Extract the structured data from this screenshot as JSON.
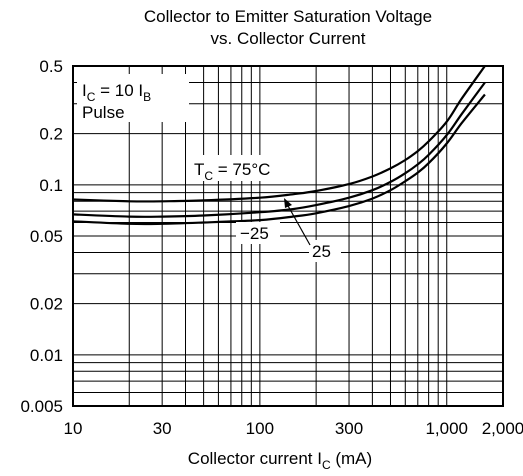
{
  "chart_data": {
    "type": "line",
    "title_line1": "Collector to Emitter Saturation Voltage",
    "title_line2": "vs. Collector Current",
    "xlabel": {
      "prefix": "Collector current  I",
      "sub": "C",
      "suffix": "  (mA)"
    },
    "ylabel": "",
    "x_scale": "log",
    "y_scale": "log",
    "xlim": [
      10,
      2000
    ],
    "ylim": [
      0.005,
      0.5
    ],
    "x_ticks": [
      {
        "value": 10,
        "label": "10"
      },
      {
        "value": 30,
        "label": "30"
      },
      {
        "value": 100,
        "label": "100"
      },
      {
        "value": 300,
        "label": "300"
      },
      {
        "value": 1000,
        "label": "1,000"
      },
      {
        "value": 2000,
        "label": "2,000"
      }
    ],
    "y_ticks": [
      {
        "value": 0.5,
        "label": "0.5"
      },
      {
        "value": 0.2,
        "label": "0.2"
      },
      {
        "value": 0.1,
        "label": "0.1"
      },
      {
        "value": 0.05,
        "label": "0.05"
      },
      {
        "value": 0.02,
        "label": "0.02"
      },
      {
        "value": 0.01,
        "label": "0.01"
      },
      {
        "value": 0.005,
        "label": "0.005"
      }
    ],
    "x_grid": [
      20,
      30,
      40,
      50,
      60,
      70,
      80,
      90,
      100,
      200,
      300,
      400,
      500,
      600,
      700,
      800,
      900,
      1000
    ],
    "y_grid": [
      0.006,
      0.007,
      0.008,
      0.009,
      0.01,
      0.02,
      0.03,
      0.04,
      0.05,
      0.06,
      0.07,
      0.08,
      0.09,
      0.1,
      0.2,
      0.3,
      0.4
    ],
    "grid": true,
    "condition": {
      "line1_prefix": "I",
      "line1_sub": "C",
      "line1_mid": " = 10 I",
      "line1_sub2": "B",
      "line2": "Pulse"
    },
    "series": [
      {
        "name": "T_C = 75°C",
        "label": {
          "prefix": "T",
          "sub": "C",
          "suffix": " = 75°C"
        },
        "x": [
          10,
          20,
          30,
          50,
          100,
          150,
          200,
          300,
          400,
          500,
          600,
          700,
          800,
          1000,
          1200,
          1600
        ],
        "y": [
          0.082,
          0.08,
          0.08,
          0.081,
          0.084,
          0.088,
          0.092,
          0.101,
          0.112,
          0.125,
          0.14,
          0.158,
          0.18,
          0.235,
          0.32,
          0.5
        ]
      },
      {
        "name": "25",
        "label": {
          "prefix": "25",
          "sub": "",
          "suffix": ""
        },
        "x": [
          10,
          20,
          30,
          50,
          100,
          150,
          200,
          300,
          400,
          500,
          600,
          700,
          800,
          1000,
          1200,
          1600
        ],
        "y": [
          0.067,
          0.065,
          0.065,
          0.066,
          0.069,
          0.072,
          0.076,
          0.084,
          0.093,
          0.104,
          0.117,
          0.132,
          0.15,
          0.196,
          0.26,
          0.4
        ]
      },
      {
        "name": "−25",
        "label": {
          "prefix": "−25",
          "sub": "",
          "suffix": ""
        },
        "x": [
          10,
          20,
          30,
          50,
          100,
          150,
          200,
          300,
          400,
          500,
          600,
          700,
          800,
          1000,
          1200,
          1600
        ],
        "y": [
          0.061,
          0.059,
          0.059,
          0.06,
          0.062,
          0.065,
          0.068,
          0.075,
          0.083,
          0.093,
          0.105,
          0.118,
          0.134,
          0.175,
          0.23,
          0.34
        ]
      }
    ]
  }
}
